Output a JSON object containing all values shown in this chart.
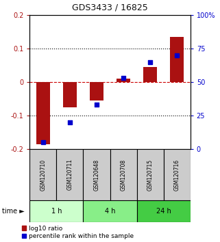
{
  "title": "GDS3433 / 16825",
  "samples": [
    "GSM120710",
    "GSM120711",
    "GSM120648",
    "GSM120708",
    "GSM120715",
    "GSM120716"
  ],
  "log10_ratio": [
    -0.185,
    -0.075,
    -0.055,
    0.01,
    0.045,
    0.135
  ],
  "percentile_rank": [
    5.0,
    20.0,
    33.0,
    53.0,
    65.0,
    70.0
  ],
  "groups": [
    {
      "label": "1 h",
      "indices": [
        0,
        1
      ],
      "color": "#ccffcc"
    },
    {
      "label": "4 h",
      "indices": [
        2,
        3
      ],
      "color": "#88ee88"
    },
    {
      "label": "24 h",
      "indices": [
        4,
        5
      ],
      "color": "#44cc44"
    }
  ],
  "ylim_left": [
    -0.2,
    0.2
  ],
  "ylim_right": [
    0,
    100
  ],
  "yticks_left": [
    -0.2,
    -0.1,
    0.0,
    0.1,
    0.2
  ],
  "yticks_right": [
    0,
    25,
    50,
    75,
    100
  ],
  "bar_color": "#aa1111",
  "dot_color": "#0000cc",
  "hline_color": "#cc0000",
  "bg_color": "#ffffff",
  "plot_bg": "#ffffff",
  "grid_color": "#000000",
  "legend_red_label": "log10 ratio",
  "legend_blue_label": "percentile rank within the sample",
  "time_label": "time",
  "title_fontsize": 9,
  "tick_fontsize": 7,
  "sample_fontsize": 5.5,
  "group_fontsize": 7,
  "legend_fontsize": 6.5
}
